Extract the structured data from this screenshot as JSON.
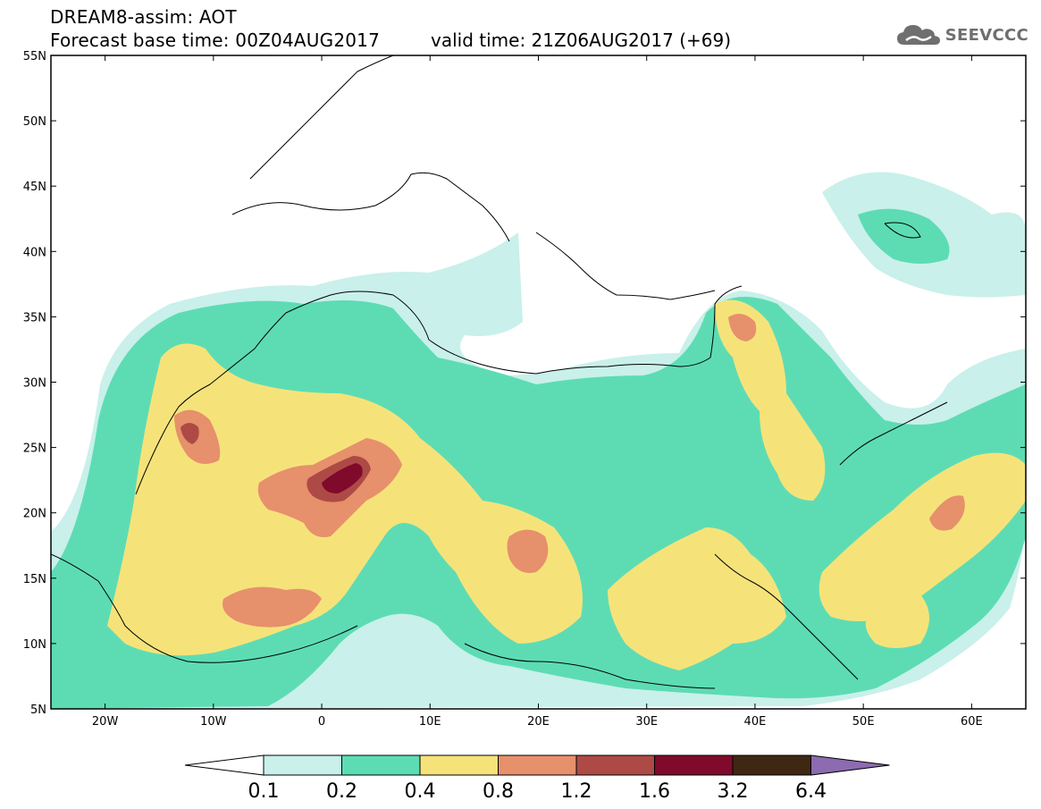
{
  "header": {
    "title": "DREAM8-assim: AOT",
    "forecast_base": "Forecast base time: 00Z04AUG2017",
    "valid_time": "valid time: 21Z06AUG2017 (+69)"
  },
  "logo": {
    "text": "SEEVCCC",
    "icon": "cloud-logo-icon"
  },
  "map": {
    "variable": "AOT",
    "lat_labels": [
      "55N",
      "50N",
      "45N",
      "40N",
      "35N",
      "30N",
      "25N",
      "20N",
      "15N",
      "10N",
      "5N"
    ],
    "lon_labels": [
      "20W",
      "10W",
      "0",
      "10E",
      "20E",
      "30E",
      "40E",
      "50E",
      "60E"
    ]
  },
  "legend": {
    "thresholds": [
      "0.1",
      "0.2",
      "0.4",
      "0.8",
      "1.2",
      "1.6",
      "3.2",
      "6.4"
    ],
    "colors": [
      "#c9f0ea",
      "#5ddcb4",
      "#f5e37a",
      "#e7906c",
      "#ad4a46",
      "#7f0a2c",
      "#3e2814",
      "#8c6bb0"
    ]
  },
  "colors": {
    "background": "#ffffff",
    "border": "#000000",
    "logo_gray": "#6f6f6f"
  }
}
